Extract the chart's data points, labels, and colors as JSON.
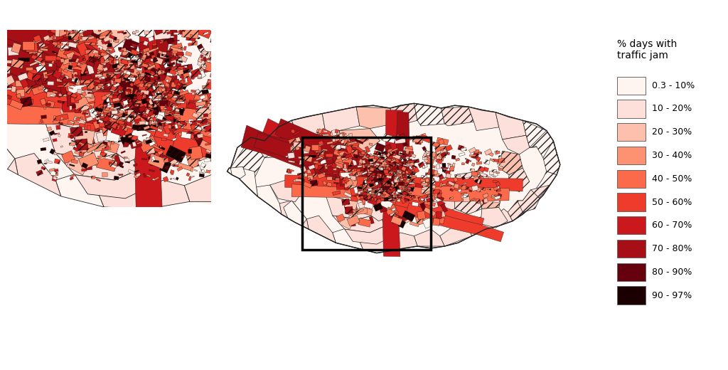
{
  "legend_title": "% days with\ntraffic jam",
  "legend_labels": [
    "0.3 - 10%",
    "10 - 20%",
    "20 - 30%",
    "30 - 40%",
    "40 - 50%",
    "50 - 60%",
    "60 - 70%",
    "70 - 80%",
    "80 - 90%",
    "90 - 97%"
  ],
  "legend_colors": [
    "#fff5f0",
    "#fde0d9",
    "#fcc0ad",
    "#fc9272",
    "#fb6a4a",
    "#ef3b2c",
    "#cb181d",
    "#a50f15",
    "#67000d",
    "#1a0000"
  ],
  "background_color": "#ffffff",
  "hatch_pattern": "///",
  "figsize": [
    10.24,
    5.2
  ],
  "dpi": 100
}
